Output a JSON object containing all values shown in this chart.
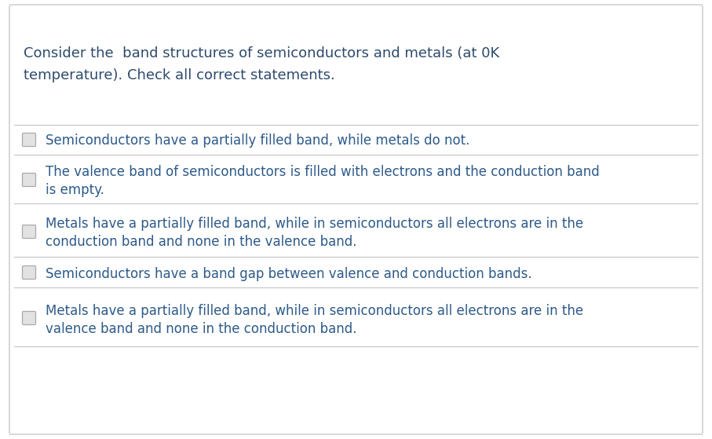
{
  "background_color": "#ffffff",
  "border_color": "#c8c8c8",
  "question_text_line1": "Consider the  band structures of semiconductors and metals (at 0K",
  "question_text_line2": "temperature). Check all correct statements.",
  "question_color": "#2d4a6b",
  "question_fontsize": 13.0,
  "divider_color": "#c8c8c8",
  "checkbox_color": "#e2e2e2",
  "checkbox_border_color": "#aaaaaa",
  "answer_color": "#2d5a8a",
  "answer_fontsize": 12.0,
  "fig_width": 9.07,
  "fig_height": 5.59,
  "dpi": 100,
  "options": [
    {
      "lines": [
        "Semiconductors have a partially filled band, while metals do not."
      ],
      "two_line": false
    },
    {
      "lines": [
        "The valence band of semiconductors is filled with electrons and the conduction band",
        "is empty."
      ],
      "two_line": true
    },
    {
      "lines": [
        "Metals have a partially filled band, while in semiconductors all electrons are in the",
        "conduction band and none in the valence band."
      ],
      "two_line": true
    },
    {
      "lines": [
        "Semiconductors have a band gap between valence and conduction bands."
      ],
      "two_line": false
    },
    {
      "lines": [
        "Metals have a partially filled band, while in semiconductors all electrons are in the",
        "valence band and none in the conduction band."
      ],
      "two_line": true
    }
  ]
}
